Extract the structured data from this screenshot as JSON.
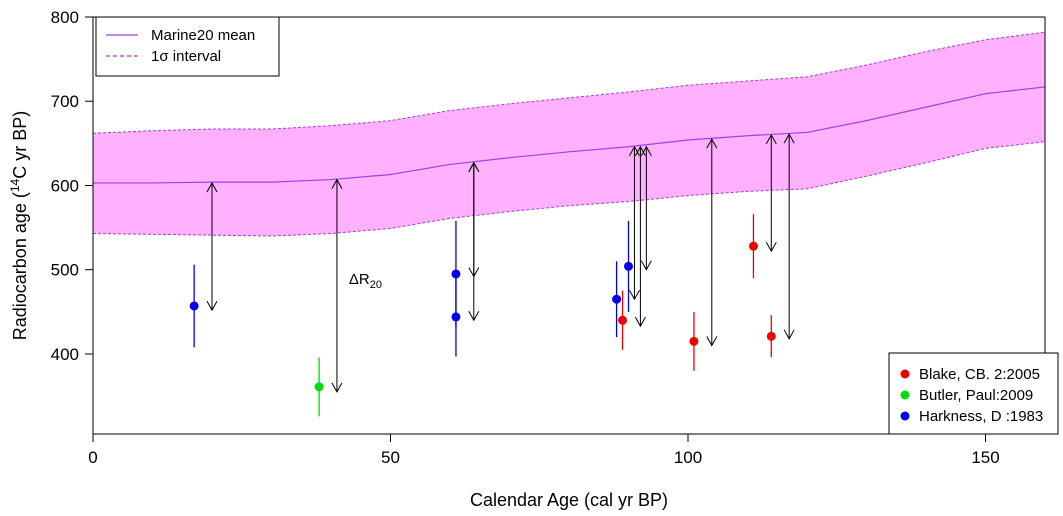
{
  "chart_data": {
    "type": "scatter",
    "xlabel": "Calendar Age (cal yr BP)",
    "ylabel_parts": {
      "before": "Radiocarbon age (",
      "sup": "14",
      "after": "C yr BP)"
    },
    "xlim": [
      0,
      160
    ],
    "ylim": [
      305,
      800
    ],
    "x_ticks": [
      0,
      50,
      100,
      150
    ],
    "y_ticks": [
      400,
      500,
      600,
      700,
      800
    ],
    "curve": {
      "name": "Marine20 mean",
      "band_name": "1σ interval",
      "color": "#a040e0",
      "band_color": "#ffb0ff",
      "x": [
        0,
        10,
        20,
        30,
        40,
        50,
        60,
        70,
        80,
        90,
        100,
        110,
        120,
        130,
        140,
        150,
        160
      ],
      "mean": [
        603,
        603,
        604,
        604,
        607,
        613,
        625,
        633,
        640,
        646,
        654,
        659,
        663,
        677,
        693,
        709,
        717
      ],
      "upper": [
        662,
        665,
        667,
        667,
        671,
        677,
        689,
        697,
        704,
        711,
        719,
        724,
        729,
        743,
        759,
        773,
        782
      ],
      "lower": [
        543,
        542,
        541,
        540,
        543,
        549,
        561,
        569,
        576,
        581,
        588,
        593,
        596,
        611,
        627,
        644,
        652
      ]
    },
    "series": [
      {
        "name": "Blake, CB. 2:2005",
        "color": "#ee0000",
        "points": [
          {
            "x": 89.0,
            "y": 440,
            "lo": 405,
            "hi": 475
          },
          {
            "x": 101.0,
            "y": 415,
            "lo": 380,
            "hi": 450
          },
          {
            "x": 111.0,
            "y": 528,
            "lo": 490,
            "hi": 566
          },
          {
            "x": 114.0,
            "y": 421,
            "lo": 396,
            "hi": 446
          }
        ]
      },
      {
        "name": "Butler, Paul:2009",
        "color": "#00dd00",
        "points": [
          {
            "x": 38.0,
            "y": 361,
            "lo": 326,
            "hi": 396
          }
        ]
      },
      {
        "name": "Harkness, D :1983",
        "color": "#0000ee",
        "points": [
          {
            "x": 17.0,
            "y": 457,
            "lo": 408,
            "hi": 506
          },
          {
            "x": 61.0,
            "y": 495,
            "lo": 432,
            "hi": 558
          },
          {
            "x": 61.0,
            "y": 444,
            "lo": 397,
            "hi": 491
          },
          {
            "x": 88.0,
            "y": 465,
            "lo": 420,
            "hi": 510
          },
          {
            "x": 90.0,
            "y": 504,
            "lo": 450,
            "hi": 558
          }
        ]
      }
    ],
    "arrows": [
      {
        "x": 20.0,
        "y1": 603,
        "y2": 452
      },
      {
        "x": 41.0,
        "y1": 607,
        "y2": 355
      },
      {
        "x": 64.0,
        "y1": 627,
        "y2": 492
      },
      {
        "x": 64.0,
        "y1": 627,
        "y2": 440
      },
      {
        "x": 91.0,
        "y1": 646,
        "y2": 465
      },
      {
        "x": 92.0,
        "y1": 646,
        "y2": 433
      },
      {
        "x": 93.0,
        "y1": 646,
        "y2": 500
      },
      {
        "x": 104.0,
        "y1": 655,
        "y2": 410
      },
      {
        "x": 114.0,
        "y1": 660,
        "y2": 522
      },
      {
        "x": 117.0,
        "y1": 661,
        "y2": 418
      }
    ],
    "annotation": {
      "text": "ΔR",
      "sub": "20",
      "x": 43,
      "y": 483
    },
    "legend_curve_position": "top-left",
    "legend_series_position": "bottom-right"
  }
}
